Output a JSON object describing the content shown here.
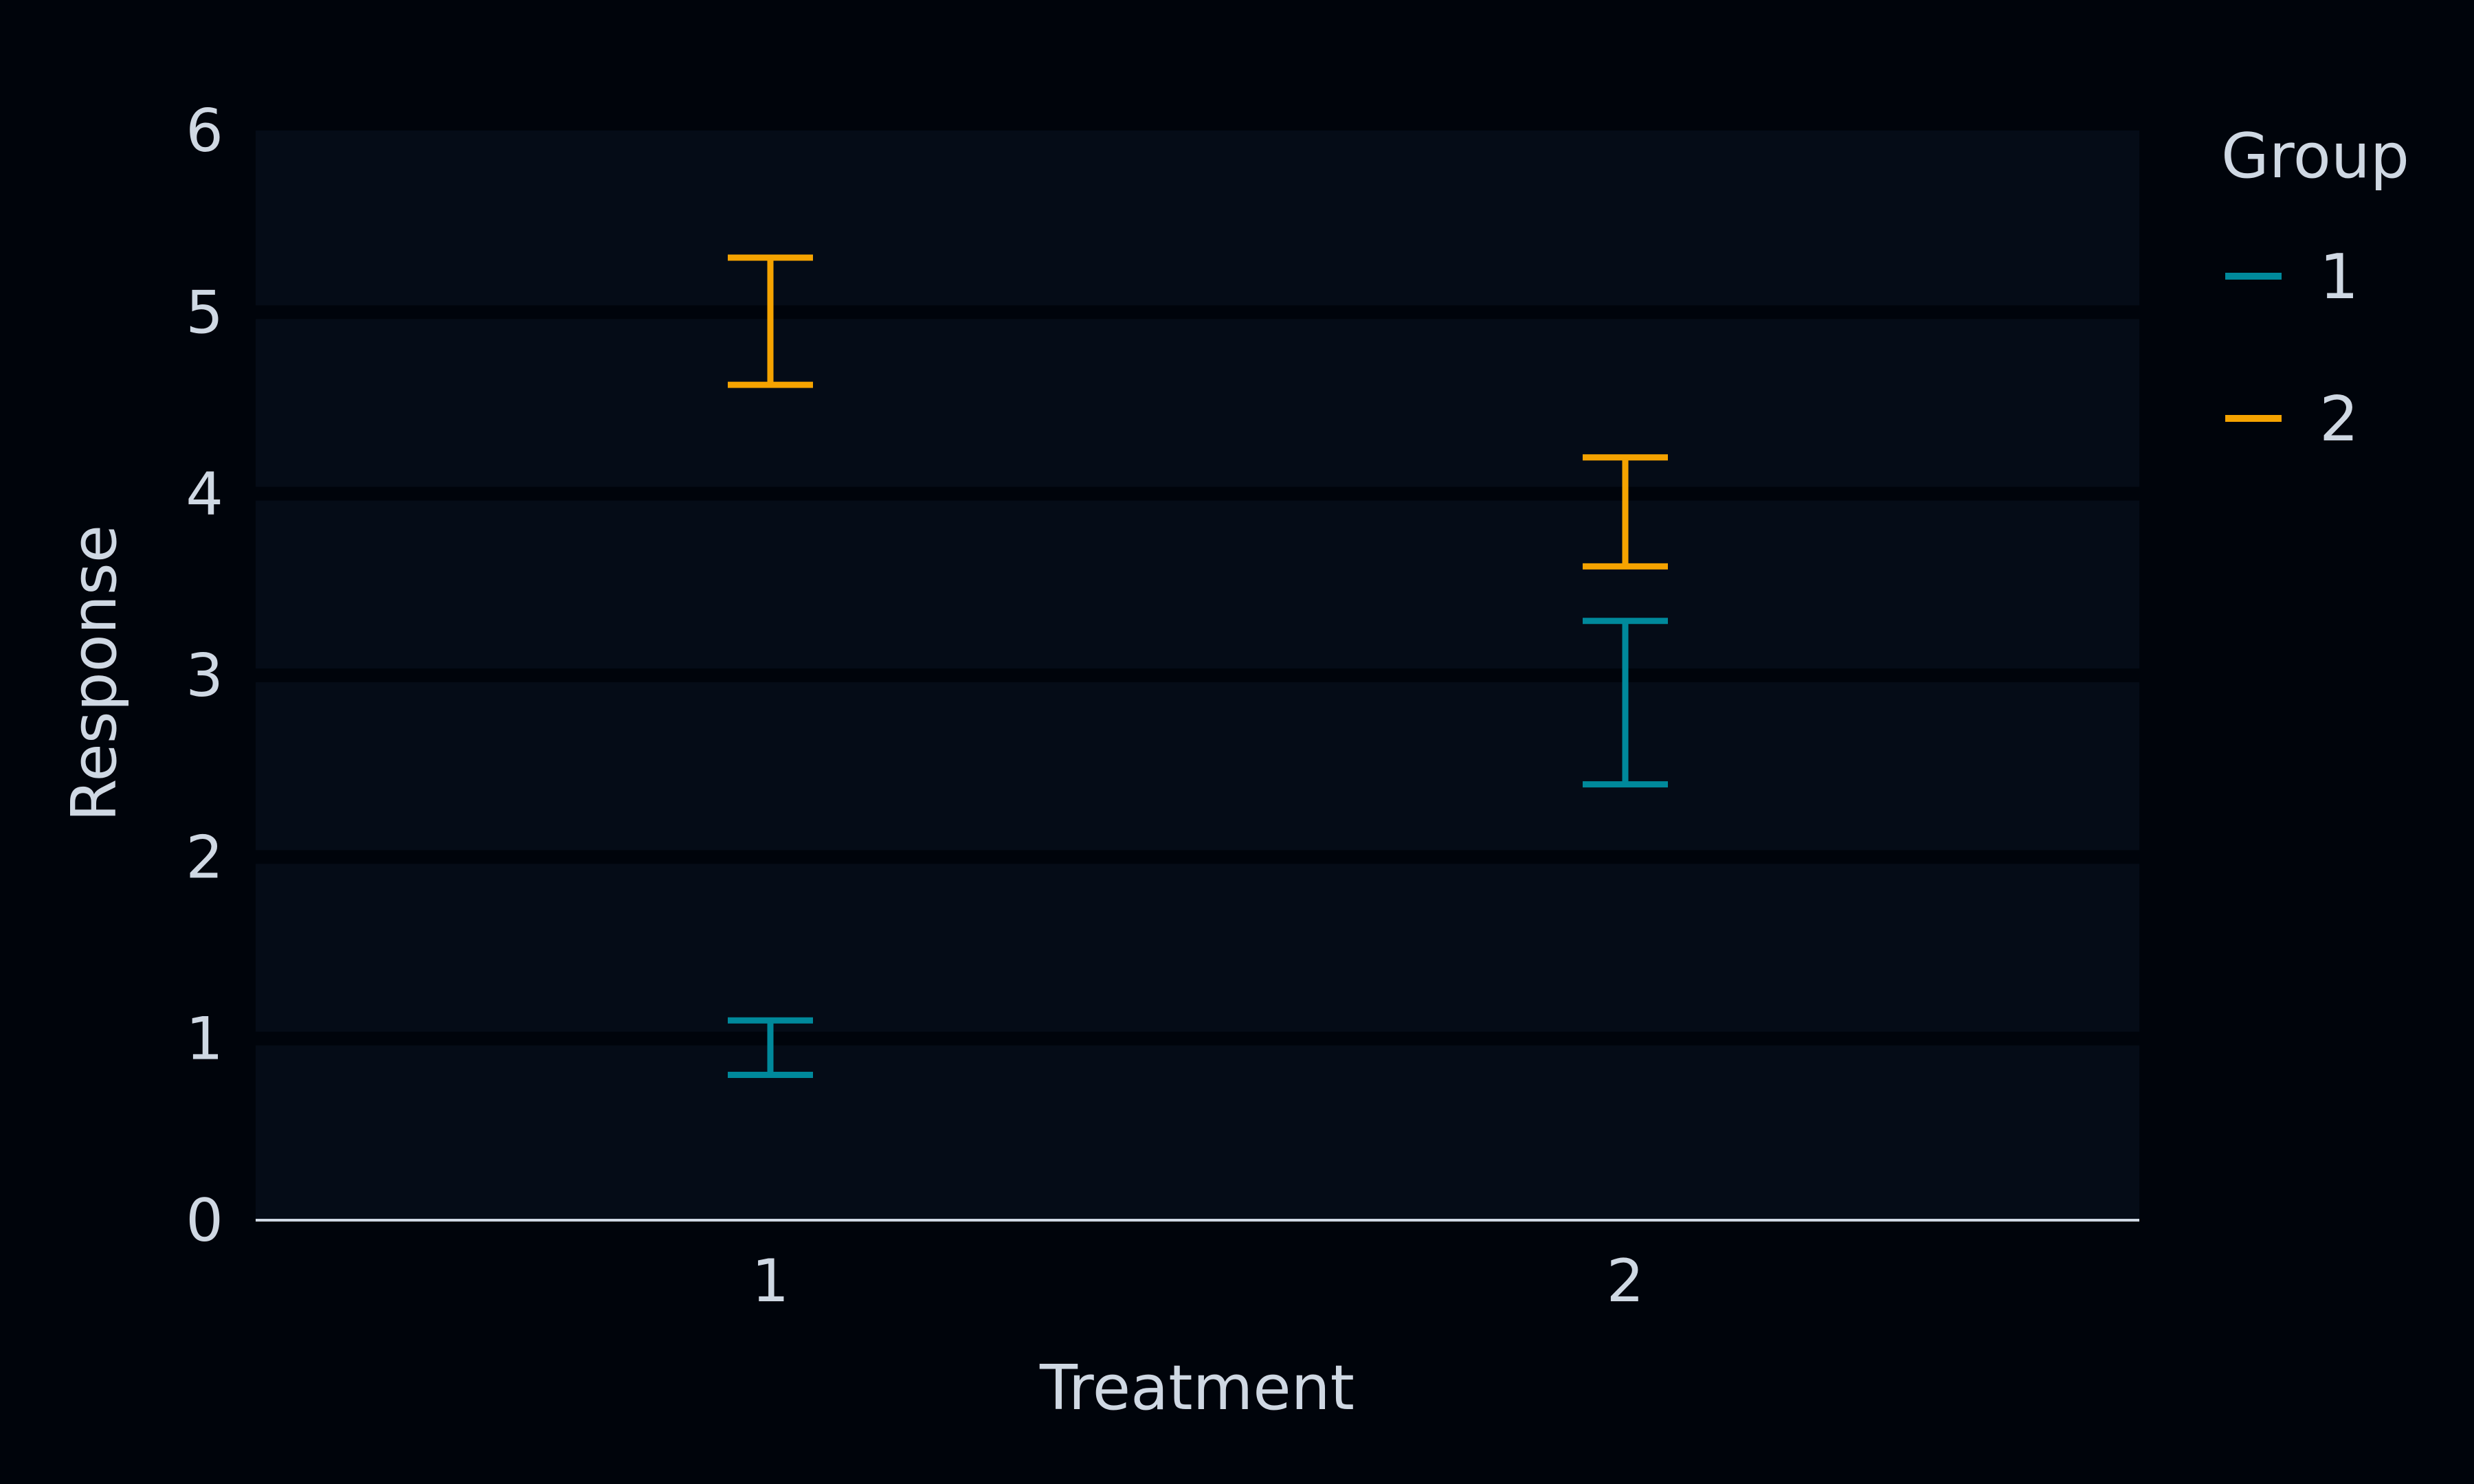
{
  "chart_data": {
    "type": "errorbar",
    "xlabel": "Treatment",
    "ylabel": "Response",
    "categories": [
      "1",
      "2"
    ],
    "ylim": [
      0,
      6
    ],
    "yticks": [
      "0",
      "1",
      "2",
      "3",
      "4",
      "5",
      "6"
    ],
    "grid": true,
    "legend": {
      "title": "Group",
      "placement": "right"
    },
    "series": [
      {
        "name": "1",
        "color": "#00899b",
        "intervals": [
          {
            "x": "1",
            "low": 0.8,
            "high": 1.1
          },
          {
            "x": "2",
            "low": 2.4,
            "high": 3.3
          }
        ]
      },
      {
        "name": "2",
        "color": "#f5a300",
        "intervals": [
          {
            "x": "1",
            "low": 4.6,
            "high": 5.3
          },
          {
            "x": "2",
            "low": 3.6,
            "high": 4.2
          }
        ]
      }
    ],
    "colors": {
      "background": "#00040b",
      "panel": "#050c17",
      "gridline": "#00040b",
      "axis_line": "#cfd8e3",
      "text": "#cfd8e3"
    }
  }
}
